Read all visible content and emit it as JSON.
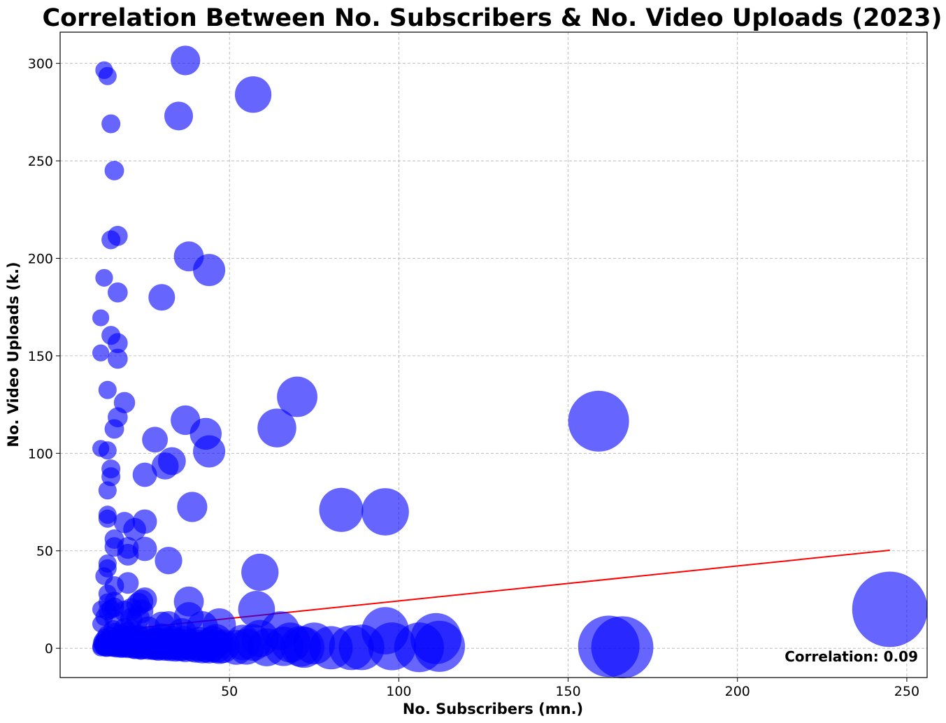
{
  "chart_data": {
    "type": "scatter",
    "title": "Correlation Between No. Subscribers & No. Video Uploads (2023)",
    "xlabel": "No. Subscribers (mn.)",
    "ylabel": "No. Video Uploads (k.)",
    "xlim": [
      0,
      256
    ],
    "ylim": [
      -15,
      316
    ],
    "x_ticks": [
      50,
      100,
      150,
      200,
      250
    ],
    "y_ticks": [
      0,
      50,
      100,
      150,
      200,
      250,
      300
    ],
    "grid": true,
    "marker_color": "#0000ff",
    "marker_alpha": 0.6,
    "size_encoding": "subscribers",
    "annotation": "Correlation: 0.09",
    "trendline": {
      "color": "#ff0000",
      "x": [
        12,
        245
      ],
      "y": [
        8.5,
        50.3
      ]
    },
    "points": [
      [
        245,
        20
      ],
      [
        159,
        116.5
      ],
      [
        162,
        1
      ],
      [
        166,
        0.5
      ],
      [
        111,
        5
      ],
      [
        112,
        1
      ],
      [
        106,
        0.5
      ],
      [
        96,
        70
      ],
      [
        96,
        9
      ],
      [
        98,
        1
      ],
      [
        83,
        71
      ],
      [
        89,
        0.5
      ],
      [
        86,
        0.3
      ],
      [
        80,
        0.3
      ],
      [
        75,
        2.5
      ],
      [
        70,
        129
      ],
      [
        71,
        1
      ],
      [
        72,
        0.5
      ],
      [
        68,
        3
      ],
      [
        66,
        1
      ],
      [
        65,
        9
      ],
      [
        64,
        113
      ],
      [
        61,
        0.5
      ],
      [
        59,
        39
      ],
      [
        59,
        5
      ],
      [
        58,
        20
      ],
      [
        57,
        284
      ],
      [
        57,
        3
      ],
      [
        55,
        0.8
      ],
      [
        54,
        3
      ],
      [
        52,
        0.5
      ],
      [
        47,
        12
      ],
      [
        46,
        1
      ],
      [
        45,
        3
      ],
      [
        44,
        101
      ],
      [
        44,
        194
      ],
      [
        43,
        110
      ],
      [
        42,
        11
      ],
      [
        41,
        3
      ],
      [
        39,
        72.5
      ],
      [
        38,
        201
      ],
      [
        38,
        24
      ],
      [
        38,
        16
      ],
      [
        37,
        301.5
      ],
      [
        37,
        117
      ],
      [
        36,
        8
      ],
      [
        35,
        273
      ],
      [
        33,
        96
      ],
      [
        32,
        45
      ],
      [
        32,
        12
      ],
      [
        31,
        93.5
      ],
      [
        30,
        180
      ],
      [
        30,
        12
      ],
      [
        29,
        4
      ],
      [
        28,
        107
      ],
      [
        26,
        10
      ],
      [
        25,
        89
      ],
      [
        25,
        65
      ],
      [
        25,
        51
      ],
      [
        25,
        25
      ],
      [
        24,
        24
      ],
      [
        24,
        19
      ],
      [
        23,
        22.5
      ],
      [
        23,
        15.5
      ],
      [
        22,
        61
      ],
      [
        21,
        20
      ],
      [
        21,
        15
      ],
      [
        20,
        33.5
      ],
      [
        20,
        51.5
      ],
      [
        20,
        48
      ],
      [
        19,
        126
      ],
      [
        19,
        64.5
      ],
      [
        19,
        19
      ],
      [
        19,
        10
      ],
      [
        17,
        211.5
      ],
      [
        17,
        182.5
      ],
      [
        17,
        156.5
      ],
      [
        17,
        148.5
      ],
      [
        17,
        118.5
      ],
      [
        16,
        245
      ],
      [
        16,
        112.5
      ],
      [
        16,
        56
      ],
      [
        16,
        52
      ],
      [
        16,
        32
      ],
      [
        16,
        24
      ],
      [
        16,
        21
      ],
      [
        16,
        15
      ],
      [
        15,
        269
      ],
      [
        15,
        209.5
      ],
      [
        15,
        160.5
      ],
      [
        15,
        92
      ],
      [
        15,
        88
      ],
      [
        15,
        20
      ],
      [
        14,
        293.5
      ],
      [
        14,
        132.5
      ],
      [
        14,
        101.5
      ],
      [
        14,
        81
      ],
      [
        14,
        68.5
      ],
      [
        14,
        66.5
      ],
      [
        14,
        43.5
      ],
      [
        14,
        41
      ],
      [
        14,
        28
      ],
      [
        14,
        23.5
      ],
      [
        14,
        19
      ],
      [
        13,
        296.5
      ],
      [
        13,
        190
      ],
      [
        13,
        37
      ],
      [
        13,
        16
      ],
      [
        12,
        169.5
      ],
      [
        12,
        151.5
      ],
      [
        12,
        102.5
      ],
      [
        12,
        20
      ],
      [
        12,
        12.5
      ],
      [
        12,
        1
      ],
      [
        12.5,
        2
      ],
      [
        13,
        0.5
      ],
      [
        13,
        3.5
      ],
      [
        13.5,
        1.5
      ],
      [
        14,
        0.3
      ],
      [
        14,
        4.5
      ],
      [
        14.5,
        2
      ],
      [
        15,
        1
      ],
      [
        15,
        6
      ],
      [
        15.5,
        3
      ],
      [
        16,
        0.5
      ],
      [
        16,
        8
      ],
      [
        16.5,
        2
      ],
      [
        17,
        1
      ],
      [
        17,
        5
      ],
      [
        17.5,
        3
      ],
      [
        18,
        0.4
      ],
      [
        18,
        7
      ],
      [
        18.5,
        2
      ],
      [
        19,
        1
      ],
      [
        19,
        4
      ],
      [
        20,
        0.5
      ],
      [
        20,
        6
      ],
      [
        20.5,
        2.5
      ],
      [
        21,
        1
      ],
      [
        21,
        9
      ],
      [
        22,
        0.3
      ],
      [
        22,
        4
      ],
      [
        22.5,
        1.5
      ],
      [
        23,
        0.8
      ],
      [
        23,
        6
      ],
      [
        24,
        2
      ],
      [
        24,
        0.4
      ],
      [
        25,
        3
      ],
      [
        25.5,
        1
      ],
      [
        26,
        0.5
      ],
      [
        26,
        5
      ],
      [
        27,
        2
      ],
      [
        27.5,
        0.5
      ],
      [
        28,
        1
      ],
      [
        28,
        4
      ],
      [
        29,
        0.3
      ],
      [
        29.5,
        2
      ],
      [
        30,
        1
      ],
      [
        30,
        6
      ],
      [
        31,
        0.5
      ],
      [
        31,
        3
      ],
      [
        32,
        1.5
      ],
      [
        32.5,
        0.5
      ],
      [
        33,
        2
      ],
      [
        33,
        4.5
      ],
      [
        34,
        0.4
      ],
      [
        34,
        1.5
      ],
      [
        35,
        3
      ],
      [
        35.5,
        0.8
      ],
      [
        36,
        1
      ],
      [
        36.5,
        4
      ],
      [
        37,
        0.5
      ],
      [
        38,
        2
      ],
      [
        39,
        1
      ],
      [
        40,
        0.5
      ],
      [
        41,
        1.5
      ],
      [
        42,
        0.3
      ],
      [
        43,
        1
      ],
      [
        44,
        0.5
      ],
      [
        45,
        1.5
      ],
      [
        46,
        4
      ],
      [
        47,
        0.5
      ],
      [
        48,
        1
      ],
      [
        12,
        0.2
      ],
      [
        12.2,
        2.8
      ],
      [
        12.5,
        4
      ],
      [
        12.8,
        0.8
      ],
      [
        13.2,
        5.5
      ],
      [
        13.5,
        0.2
      ],
      [
        13.8,
        7
      ],
      [
        14.2,
        1.2
      ],
      [
        14.8,
        3.3
      ],
      [
        15.2,
        0.6
      ],
      [
        15.6,
        9.5
      ],
      [
        16.2,
        1.8
      ],
      [
        16.8,
        0.4
      ],
      [
        17.3,
        2.6
      ],
      [
        17.8,
        1.3
      ],
      [
        18.3,
        3.8
      ],
      [
        18.8,
        0.6
      ],
      [
        19.4,
        2.2
      ],
      [
        19.8,
        8
      ],
      [
        20.4,
        1.1
      ],
      [
        21.4,
        3.2
      ],
      [
        21.8,
        0.5
      ],
      [
        22.3,
        2.4
      ],
      [
        22.8,
        3.6
      ],
      [
        23.4,
        1.2
      ],
      [
        23.8,
        0.2
      ],
      [
        24.4,
        4.8
      ],
      [
        24.8,
        1.4
      ],
      [
        25.3,
        2.2
      ],
      [
        26.4,
        1.6
      ],
      [
        26.8,
        3.4
      ],
      [
        27.2,
        0.9
      ],
      [
        28.4,
        2.6
      ],
      [
        28.8,
        0.7
      ],
      [
        29.2,
        3.6
      ],
      [
        30.4,
        2.3
      ],
      [
        31.4,
        1.1
      ],
      [
        32.2,
        3.1
      ],
      [
        33.4,
        1.3
      ],
      [
        34.4,
        2.7
      ]
    ]
  }
}
